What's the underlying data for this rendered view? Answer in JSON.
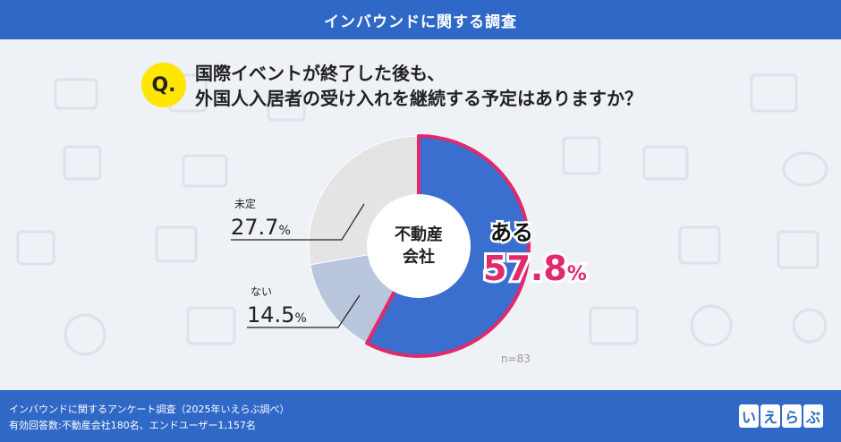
{
  "header": {
    "title": "インバウンドに関する調査"
  },
  "question": {
    "badge": "Q.",
    "line1": "国際イベントが終了した後も、",
    "line2": "外国人入居者の受け入れを継続する予定はありますか？"
  },
  "chart_data": {
    "type": "pie",
    "center_label_line1": "不動産",
    "center_label_line2": "会社",
    "sample_size": "n=83",
    "slices": [
      {
        "label": "ある",
        "value": 57.8,
        "value_text": "57.8",
        "color": "#3a6fd0"
      },
      {
        "label": "ない",
        "value": 14.5,
        "value_text": "14.5",
        "color": "#b9c6dc"
      },
      {
        "label": "未定",
        "value": 27.7,
        "value_text": "27.7",
        "color": "#e4e4e4"
      }
    ],
    "percent_sign": "%"
  },
  "colors": {
    "header_bg": "#2f68c6",
    "highlight": "#e02a6b",
    "q_badge": "#ffe600"
  },
  "footer": {
    "line1": "インバウンドに関するアンケート調査（2025年いえらぶ調べ）",
    "line2": "有効回答数:不動産会社180名、エンドユーザー1,157名",
    "logo_chars": [
      "い",
      "え",
      "ら",
      "ぶ"
    ]
  }
}
